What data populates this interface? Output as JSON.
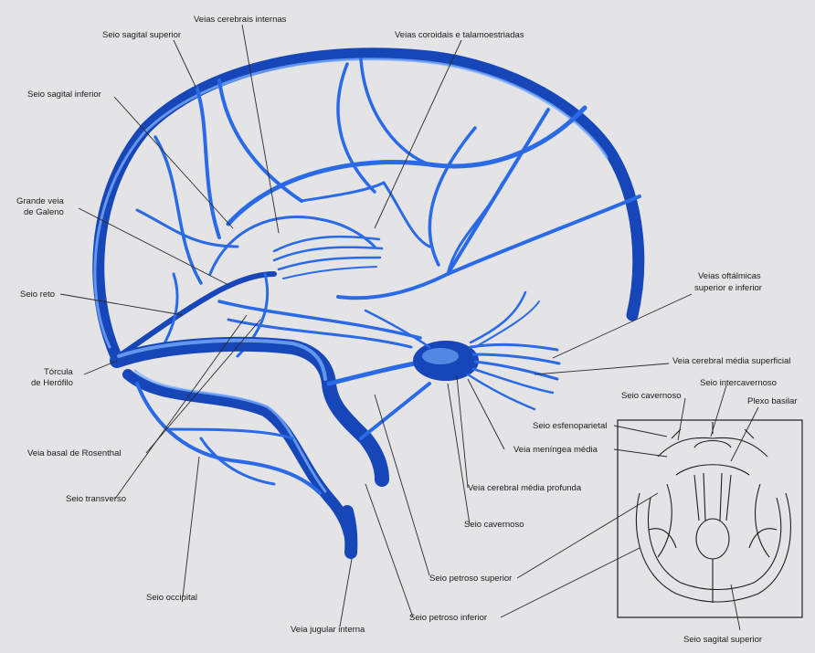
{
  "labels": {
    "veias_cerebrais_internas": "Veias cerebrais internas",
    "seio_sagital_superior": "Seio sagital superior",
    "veias_coroidais": "Veias coroidais e talamoestriadas",
    "seio_sagital_inferior": "Seio sagital inferior",
    "grande_veia_1": "Grande veia",
    "grande_veia_2": "de Galeno",
    "seio_reto": "Seio reto",
    "veias_oftalmicas_1": "Veias oftálmicas",
    "veias_oftalmicas_2": "superior e inferior",
    "torcula_1": "Tórcula",
    "torcula_2": "de Herófilo",
    "veia_cerebral_media_superficial": "Veia cerebral média superficial",
    "seio_cavernoso_inset": "Seio cavernoso",
    "seio_intercavernoso": "Seio intercavernoso",
    "plexo_basilar": "Plexo basilar",
    "seio_esfenoparietal": "Seio esfenoparietal",
    "veia_meningea_media": "Veia meníngea média",
    "veia_basal": "Veia basal de Rosenthal",
    "veia_cerebral_media_profunda": "Veia cerebral média profunda",
    "seio_transverso": "Seio transverso",
    "seio_cavernoso": "Seio cavernoso",
    "seio_petroso_superior": "Seio petroso superior",
    "seio_occipital": "Seio occipital",
    "seio_petroso_inferior": "Seio petroso inferior",
    "veia_jugular_interna": "Veia jugular interna",
    "seio_sagital_superior_inset": "Seio sagital superior"
  },
  "colors": {
    "background": "#e4e4e6",
    "vein_dark": "#1646b8",
    "vein_mid": "#2a6ae6",
    "vein_highlight": "#7fb2ff",
    "label_text": "#1a1a1a"
  }
}
